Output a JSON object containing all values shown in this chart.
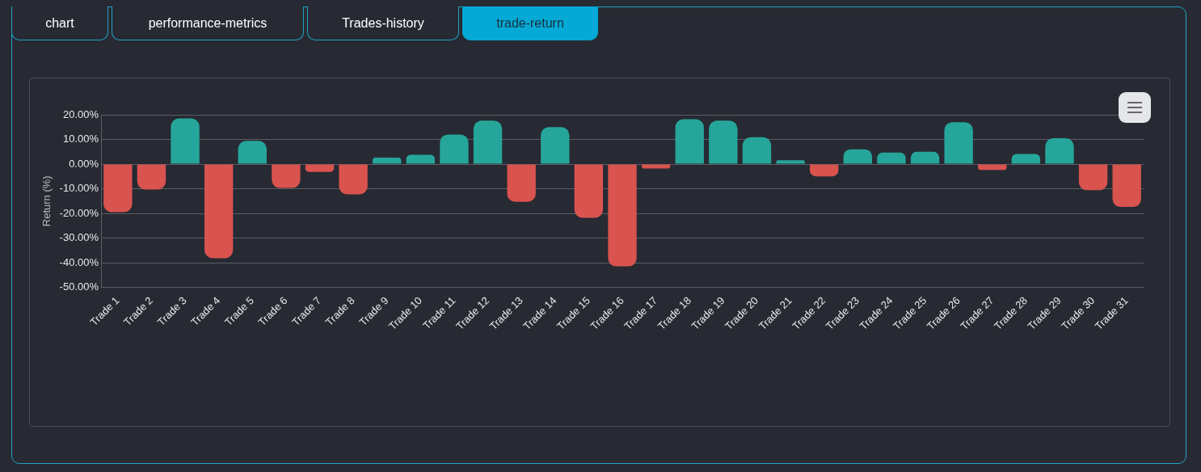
{
  "chart_data": {
    "type": "bar",
    "ylabel": "Return (%)",
    "annotations": [
      "chart",
      "performance-metrics",
      "Trades-history",
      "trade-return"
    ],
    "categories": [
      "Trade 1",
      "Trade 2",
      "Trade 3",
      "Trade 4",
      "Trade 5",
      "Trade 6",
      "Trade 7",
      "Trade 8",
      "Trade 9",
      "Trade 10",
      "Trade 11",
      "Trade 12",
      "Trade 13",
      "Trade 14",
      "Trade 15",
      "Trade 16",
      "Trade 17",
      "Trade 18",
      "Trade 19",
      "Trade 20",
      "Trade 21",
      "Trade 22",
      "Trade 23",
      "Trade 24",
      "Trade 25",
      "Trade 26",
      "Trade 27",
      "Trade 28",
      "Trade 29",
      "Trade 30",
      "Trade 31"
    ],
    "values": [
      -19.5,
      -10.3,
      18.5,
      -38.2,
      9.4,
      -9.7,
      -3.2,
      -12.3,
      2.6,
      3.8,
      12,
      17.6,
      -15.3,
      15,
      -21.8,
      -41.5,
      -1.8,
      18.2,
      17.6,
      10.9,
      1.6,
      -5,
      6,
      4.7,
      5,
      17,
      -2.4,
      4.1,
      10.5,
      -10.6,
      -17.4
    ],
    "colors": [
      "#d9534f",
      "#d9534f",
      "#26a69a",
      "#d9534f",
      "#26a69a",
      "#d9534f",
      "#d9534f",
      "#d9534f",
      "#26a69a",
      "#26a69a",
      "#26a69a",
      "#26a69a",
      "#d9534f",
      "#26a69a",
      "#d9534f",
      "#d9534f",
      "#d9534f",
      "#26a69a",
      "#26a69a",
      "#26a69a",
      "#26a69a",
      "#d9534f",
      "#26a69a",
      "#26a69a",
      "#26a69a",
      "#26a69a",
      "#d9534f",
      "#26a69a",
      "#26a69a",
      "#d9534f",
      "#d9534f"
    ],
    "ylim": [
      -50,
      20
    ],
    "yticks": [
      {
        "value": -50,
        "label": "-50.00%"
      },
      {
        "value": -40,
        "label": "-40.00%"
      },
      {
        "value": -30,
        "label": "-30.00%"
      },
      {
        "value": -20,
        "label": "-20.00%"
      },
      {
        "value": -10,
        "label": "-10.00%"
      },
      {
        "value": 0,
        "label": "0.00%"
      },
      {
        "value": 10,
        "label": "10.00%"
      },
      {
        "value": 20,
        "label": "20.00%"
      }
    ],
    "grid": "y",
    "legend": false
  }
}
